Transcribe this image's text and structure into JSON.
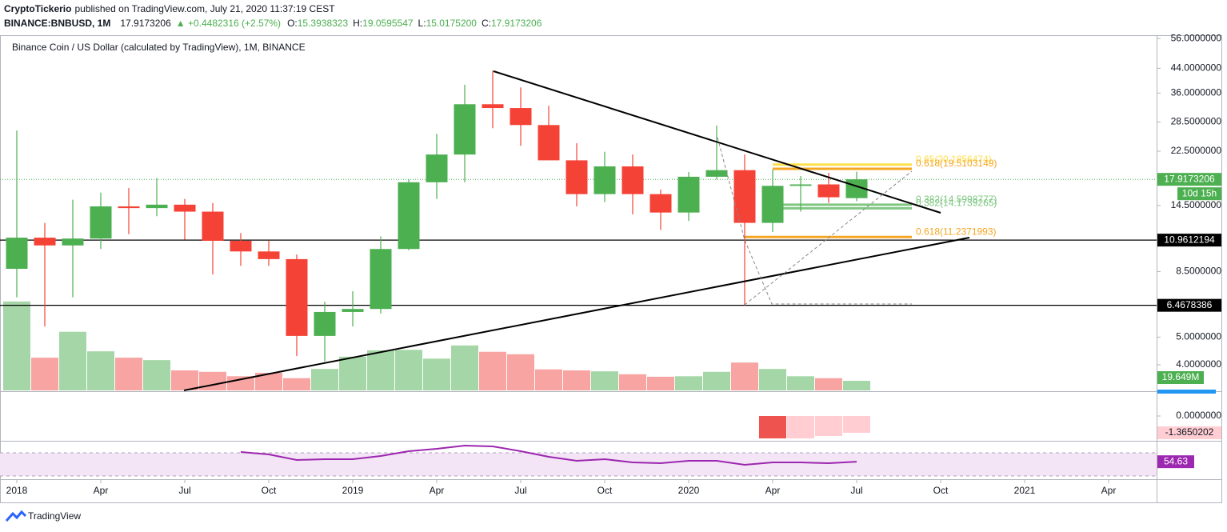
{
  "header": {
    "publisher": "CryptoTickerio",
    "published": "published on TradingView.com, July 21, 2020 11:37:19 CEST",
    "symbol": "BINANCE:BNBUSD, 1M",
    "last": "17.9173206",
    "change": "▲ +0.4482316 (+2.57%)",
    "ohlc": [
      {
        "label": "O:",
        "value": "15.3938323"
      },
      {
        "label": "H:",
        "value": "19.0595547"
      },
      {
        "label": "L:",
        "value": "15.0175200"
      },
      {
        "label": "C:",
        "value": "17.9173206"
      }
    ]
  },
  "chart_data": {
    "type": "candlestick",
    "title": "Binance Coin / US Dollar (calculated by TradingView), 1M, BINANCE",
    "x": [
      "2018-01",
      "2018-02",
      "2018-03",
      "2018-04",
      "2018-05",
      "2018-06",
      "2018-07",
      "2018-08",
      "2018-09",
      "2018-10",
      "2018-11",
      "2018-12",
      "2019-01",
      "2019-02",
      "2019-03",
      "2019-04",
      "2019-05",
      "2019-06",
      "2019-07",
      "2019-08",
      "2019-09",
      "2019-10",
      "2019-11",
      "2019-12",
      "2020-01",
      "2020-02",
      "2020-03",
      "2020-04",
      "2020-05",
      "2020-06",
      "2020-07"
    ],
    "open": [
      8.69,
      11.18,
      10.5,
      11.1,
      14.4,
      14.2,
      14.6,
      13.8,
      10.9,
      10.0,
      9.4,
      5.05,
      6.13,
      6.28,
      10.2,
      17.5,
      21.9,
      32.9,
      31.9,
      27.8,
      20.9,
      15.9,
      19.9,
      15.9,
      13.7,
      18.3,
      19.3,
      12.6,
      17.0,
      17.2,
      15.3938323
    ],
    "high": [
      26.6,
      12.6,
      15.2,
      16.1,
      16.7,
      18.1,
      15.3,
      14.8,
      11.6,
      10.9,
      9.76,
      6.66,
      7.25,
      11.3,
      17.9,
      25.9,
      38.5,
      43.2,
      37.7,
      32.5,
      24.0,
      22.4,
      21.9,
      16.5,
      19.0,
      27.7,
      21.9,
      19.4,
      18.4,
      18.9,
      19.0595547
    ],
    "low": [
      6.9,
      5.45,
      6.9,
      10.2,
      11.5,
      13.3,
      11.0,
      8.3,
      8.9,
      8.9,
      4.29,
      4.1,
      5.45,
      6.05,
      10.1,
      15.3,
      17.5,
      27.1,
      23.5,
      20.9,
      14.4,
      14.9,
      13.5,
      11.9,
      12.8,
      17.9,
      6.47,
      11.7,
      13.8,
      14.8,
      15.01752
    ],
    "close": [
      11.18,
      10.5,
      11.1,
      14.4,
      14.2,
      14.6,
      13.8,
      10.9,
      10.0,
      9.4,
      5.05,
      6.13,
      6.28,
      10.2,
      17.5,
      21.9,
      32.9,
      31.9,
      27.8,
      20.9,
      15.9,
      19.9,
      15.9,
      13.7,
      18.3,
      19.3,
      12.6,
      17.0,
      17.2,
      15.5,
      17.9173206
    ],
    "up_color": "#4caf50",
    "down_color": "#f44336",
    "log_scale": true,
    "grid": false,
    "ylim": [
      3.25,
      57.5
    ],
    "yticks": [
      {
        "value": 56,
        "label": "56.0000000"
      },
      {
        "value": 44,
        "label": "44.0000000"
      },
      {
        "value": 36,
        "label": "36.0000000"
      },
      {
        "value": 28.5,
        "label": "28.5000000"
      },
      {
        "value": 22.5,
        "label": "22.5000000"
      },
      {
        "value": 14.5,
        "label": "14.5000000"
      },
      {
        "value": 8.5,
        "label": "8.5000000"
      },
      {
        "value": 5,
        "label": "5.0000000"
      },
      {
        "value": 4,
        "label": "4.0000000"
      }
    ],
    "xlim": [
      "2017-12",
      "2021-05"
    ],
    "xticks": [
      {
        "value": "2018-01",
        "label": "2018"
      },
      {
        "value": "2018-04",
        "label": "Apr"
      },
      {
        "value": "2018-07",
        "label": "Jul"
      },
      {
        "value": "2018-10",
        "label": "Oct"
      },
      {
        "value": "2019-01",
        "label": "2019"
      },
      {
        "value": "2019-04",
        "label": "Apr"
      },
      {
        "value": "2019-07",
        "label": "Jul"
      },
      {
        "value": "2019-10",
        "label": "Oct"
      },
      {
        "value": "2020-01",
        "label": "2020"
      },
      {
        "value": "2020-04",
        "label": "Apr"
      },
      {
        "value": "2020-07",
        "label": "Jul"
      },
      {
        "value": "2020-10",
        "label": "Oct"
      },
      {
        "value": "2021-01",
        "label": "2021"
      },
      {
        "value": "2021-04",
        "label": "Apr"
      }
    ],
    "countdown": "10d 15h",
    "hlines": [
      10.9612194,
      6.4678386
    ],
    "fib_levels": [
      {
        "value": 20.1856474,
        "label": "0.65(20.1856474)",
        "color": "#ffe04d"
      },
      {
        "value": 19.5103149,
        "label": "0.618(19.5103149)",
        "color": "#f5a623"
      },
      {
        "value": 14.5998777,
        "label": "0.382(14.5998777)",
        "color": "#81c784"
      },
      {
        "value": 14.1739265,
        "label": "0.382(14.1739265)",
        "color": "#81c784"
      },
      {
        "value": 11.2371993,
        "label": "0.618(11.2371993)",
        "color": "#f5a623"
      }
    ],
    "volume": {
      "values": [
        182,
        67,
        120,
        80,
        67,
        62,
        41,
        38,
        29,
        36,
        25,
        44,
        69,
        82,
        83,
        65,
        92,
        79,
        74,
        43,
        41,
        39,
        33,
        28,
        29,
        38,
        57,
        44,
        29,
        25,
        19.649
      ],
      "ylim": [
        0,
        727
      ],
      "last_label": "19.649M",
      "up_color": "#a5d6a7",
      "down_color": "#f7a4a2"
    },
    "macd": {
      "x": [
        "2020-04",
        "2020-05",
        "2020-06",
        "2020-07"
      ],
      "values": [
        -1.82,
        -1.82,
        -1.63,
        -1.3650202
      ],
      "colors": [
        "#ef5350",
        "#ffcdd2",
        "#ffcdd2",
        "#ffcdd2"
      ],
      "ylim": [
        -1.95,
        1.95
      ],
      "yticks": [
        {
          "value": 0,
          "label": "0.0000000"
        }
      ]
    },
    "rsi": {
      "x": [
        "2018-09",
        "2018-10",
        "2018-11",
        "2018-12",
        "2019-01",
        "2019-02",
        "2019-03",
        "2019-04",
        "2019-05",
        "2019-06",
        "2019-07",
        "2019-08",
        "2019-09",
        "2019-10",
        "2019-11",
        "2019-12",
        "2020-01",
        "2020-02",
        "2020-03",
        "2020-04",
        "2020-05",
        "2020-06",
        "2020-07"
      ],
      "values": [
        71.4,
        67.2,
        57.6,
        59.0,
        59.0,
        64.5,
        72.8,
        76.9,
        82.4,
        81.0,
        72.8,
        63.1,
        56.2,
        59.0,
        53.4,
        52.1,
        56.2,
        56.2,
        49.3,
        53.4,
        53.4,
        52.1,
        54.63
      ],
      "color": "#9c27b0",
      "ylim": [
        25.9,
        89.3
      ],
      "band": [
        30,
        70
      ]
    }
  },
  "footer": {
    "brand": "TradingView"
  }
}
